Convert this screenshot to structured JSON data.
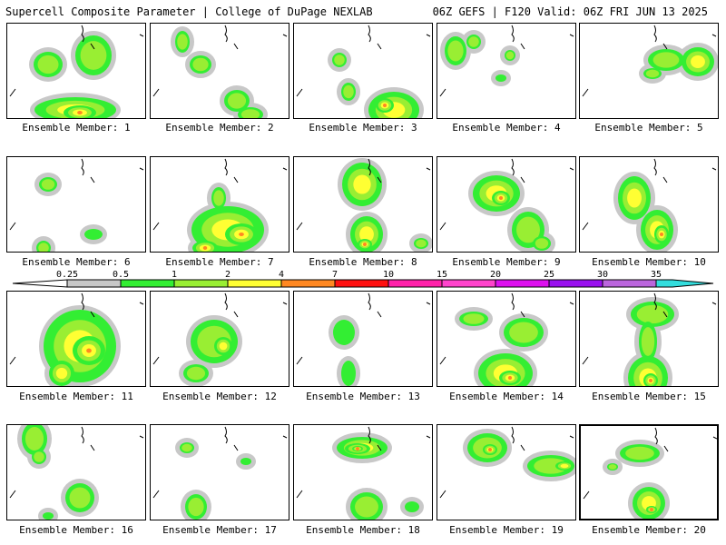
{
  "header": {
    "title_left": "Supercell Composite Parameter | College of DuPage NEXLAB",
    "title_right": "06Z GEFS | F120 Valid: 06Z FRI JUN 13 2025"
  },
  "legend": {
    "labels": [
      "0.25",
      "0.5",
      "1",
      "2",
      "4",
      "7",
      "10",
      "15",
      "20",
      "25",
      "30",
      "35"
    ],
    "colors": [
      "#c8c8c8",
      "#33ee33",
      "#99ee33",
      "#ffff33",
      "#ff8822",
      "#ff1111",
      "#ff22aa",
      "#ff44cc",
      "#dd11ee",
      "#9911ee",
      "#bb66dd",
      "#33dddd"
    ]
  },
  "members": [
    {
      "label": "Ensemble Member: 1"
    },
    {
      "label": "Ensemble Member: 2"
    },
    {
      "label": "Ensemble Member: 3"
    },
    {
      "label": "Ensemble Member: 4"
    },
    {
      "label": "Ensemble Member: 5"
    },
    {
      "label": "Ensemble Member: 6"
    },
    {
      "label": "Ensemble Member: 7"
    },
    {
      "label": "Ensemble Member: 8"
    },
    {
      "label": "Ensemble Member: 9"
    },
    {
      "label": "Ensemble Member: 10"
    },
    {
      "label": "Ensemble Member: 11"
    },
    {
      "label": "Ensemble Member: 12"
    },
    {
      "label": "Ensemble Member: 13"
    },
    {
      "label": "Ensemble Member: 14"
    },
    {
      "label": "Ensemble Member: 15"
    },
    {
      "label": "Ensemble Member: 16"
    },
    {
      "label": "Ensemble Member: 17"
    },
    {
      "label": "Ensemble Member: 18"
    },
    {
      "label": "Ensemble Member: 19"
    },
    {
      "label": "Ensemble Member: 20"
    }
  ]
}
